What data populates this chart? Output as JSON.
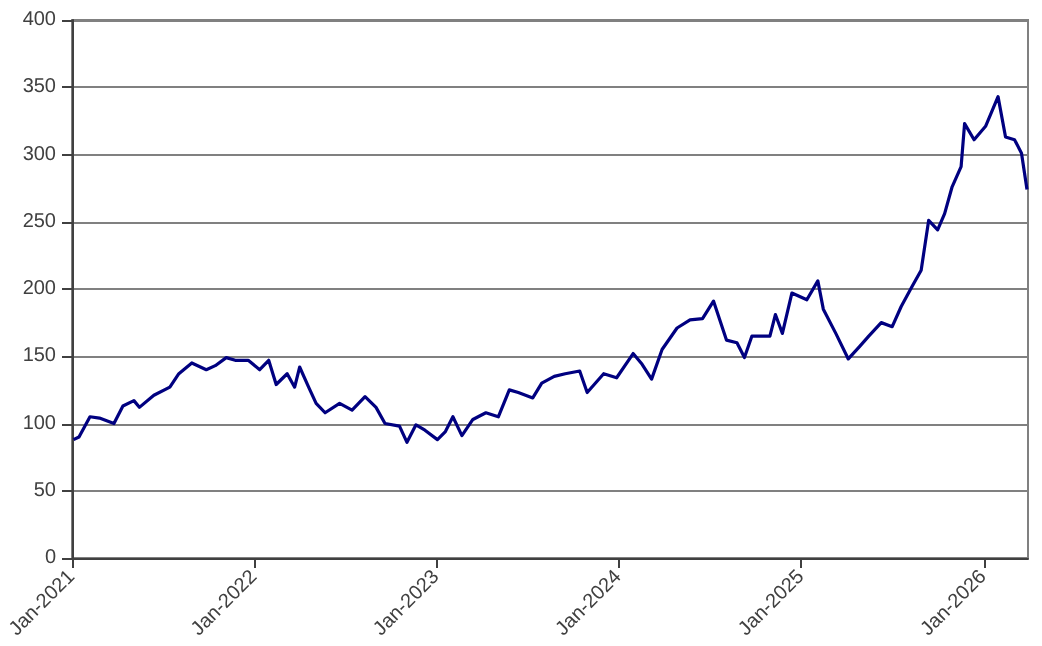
{
  "chart_data": {
    "type": "line",
    "xlim": [
      "2021-01-01",
      "2026-03-31"
    ],
    "ylim": [
      0,
      400
    ],
    "yticks": [
      0,
      50,
      100,
      150,
      200,
      250,
      300,
      350,
      400
    ],
    "xticks": [
      {
        "value": "2021-01-01",
        "label": "Jan-2021"
      },
      {
        "value": "2022-01-01",
        "label": "Jan-2022"
      },
      {
        "value": "2023-01-01",
        "label": "Jan-2023"
      },
      {
        "value": "2024-01-01",
        "label": "Jan-2024"
      },
      {
        "value": "2025-01-01",
        "label": "Jan-2025"
      },
      {
        "value": "2026-01-01",
        "label": "Jan-2026"
      }
    ],
    "grid": "y",
    "marker": "none",
    "line_style": "solid",
    "series": [
      {
        "color": "#000080",
        "x": [
          "2021-01-04",
          "2021-01-15",
          "2021-02-06",
          "2021-02-25",
          "2021-03-26",
          "2021-04-13",
          "2021-05-05",
          "2021-05-16",
          "2021-06-14",
          "2021-07-16",
          "2021-08-03",
          "2021-08-29",
          "2021-09-27",
          "2021-10-15",
          "2021-11-06",
          "2021-11-24",
          "2021-12-20",
          "2022-01-12",
          "2022-01-30",
          "2022-02-14",
          "2022-03-08",
          "2022-03-23",
          "2022-04-02",
          "2022-04-20",
          "2022-05-05",
          "2022-05-23",
          "2022-06-21",
          "2022-07-16",
          "2022-08-11",
          "2022-09-02",
          "2022-09-20",
          "2022-10-19",
          "2022-11-03",
          "2022-11-21",
          "2022-12-09",
          "2023-01-03",
          "2023-01-19",
          "2023-02-03",
          "2023-02-21",
          "2023-03-15",
          "2023-04-10",
          "2023-05-05",
          "2023-05-27",
          "2023-06-14",
          "2023-07-13",
          "2023-07-31",
          "2023-08-25",
          "2023-09-16",
          "2023-10-15",
          "2023-10-30",
          "2023-12-02",
          "2023-12-28",
          "2024-01-30",
          "2024-02-17",
          "2024-03-07",
          "2024-03-28",
          "2024-04-27",
          "2024-05-23",
          "2024-06-17",
          "2024-07-09",
          "2024-08-04",
          "2024-08-25",
          "2024-09-09",
          "2024-09-24",
          "2024-10-30",
          "2024-11-10",
          "2024-11-24",
          "2024-12-13",
          "2025-01-12",
          "2025-02-03",
          "2025-02-14",
          "2025-03-11",
          "2025-04-05",
          "2025-04-27",
          "2025-05-16",
          "2025-06-10",
          "2025-07-02",
          "2025-07-20",
          "2025-08-11",
          "2025-08-29",
          "2025-09-13",
          "2025-10-01",
          "2025-10-15",
          "2025-10-30",
          "2025-11-17",
          "2025-11-24",
          "2025-12-13",
          "2026-01-05",
          "2026-01-30",
          "2026-02-14",
          "2026-03-04",
          "2026-03-18",
          "2026-03-29"
        ],
        "values": [
          88,
          90,
          105,
          104,
          100,
          113,
          117,
          112,
          121,
          127,
          137,
          145,
          140,
          143,
          149,
          147,
          147,
          140,
          147,
          129,
          137,
          127,
          142,
          127,
          115,
          108,
          115,
          110,
          120,
          112,
          100,
          98,
          86,
          99,
          95,
          88,
          94,
          105,
          91,
          103,
          108,
          105,
          125,
          123,
          119,
          130,
          135,
          137,
          139,
          123,
          137,
          134,
          152,
          144,
          133,
          155,
          171,
          177,
          178,
          191,
          162,
          160,
          149,
          165,
          165,
          181,
          167,
          197,
          192,
          206,
          185,
          167,
          148,
          157,
          165,
          175,
          172,
          187,
          202,
          214,
          251,
          244,
          256,
          276,
          291,
          323,
          311,
          321,
          343,
          313,
          311,
          301,
          274
        ]
      }
    ]
  }
}
